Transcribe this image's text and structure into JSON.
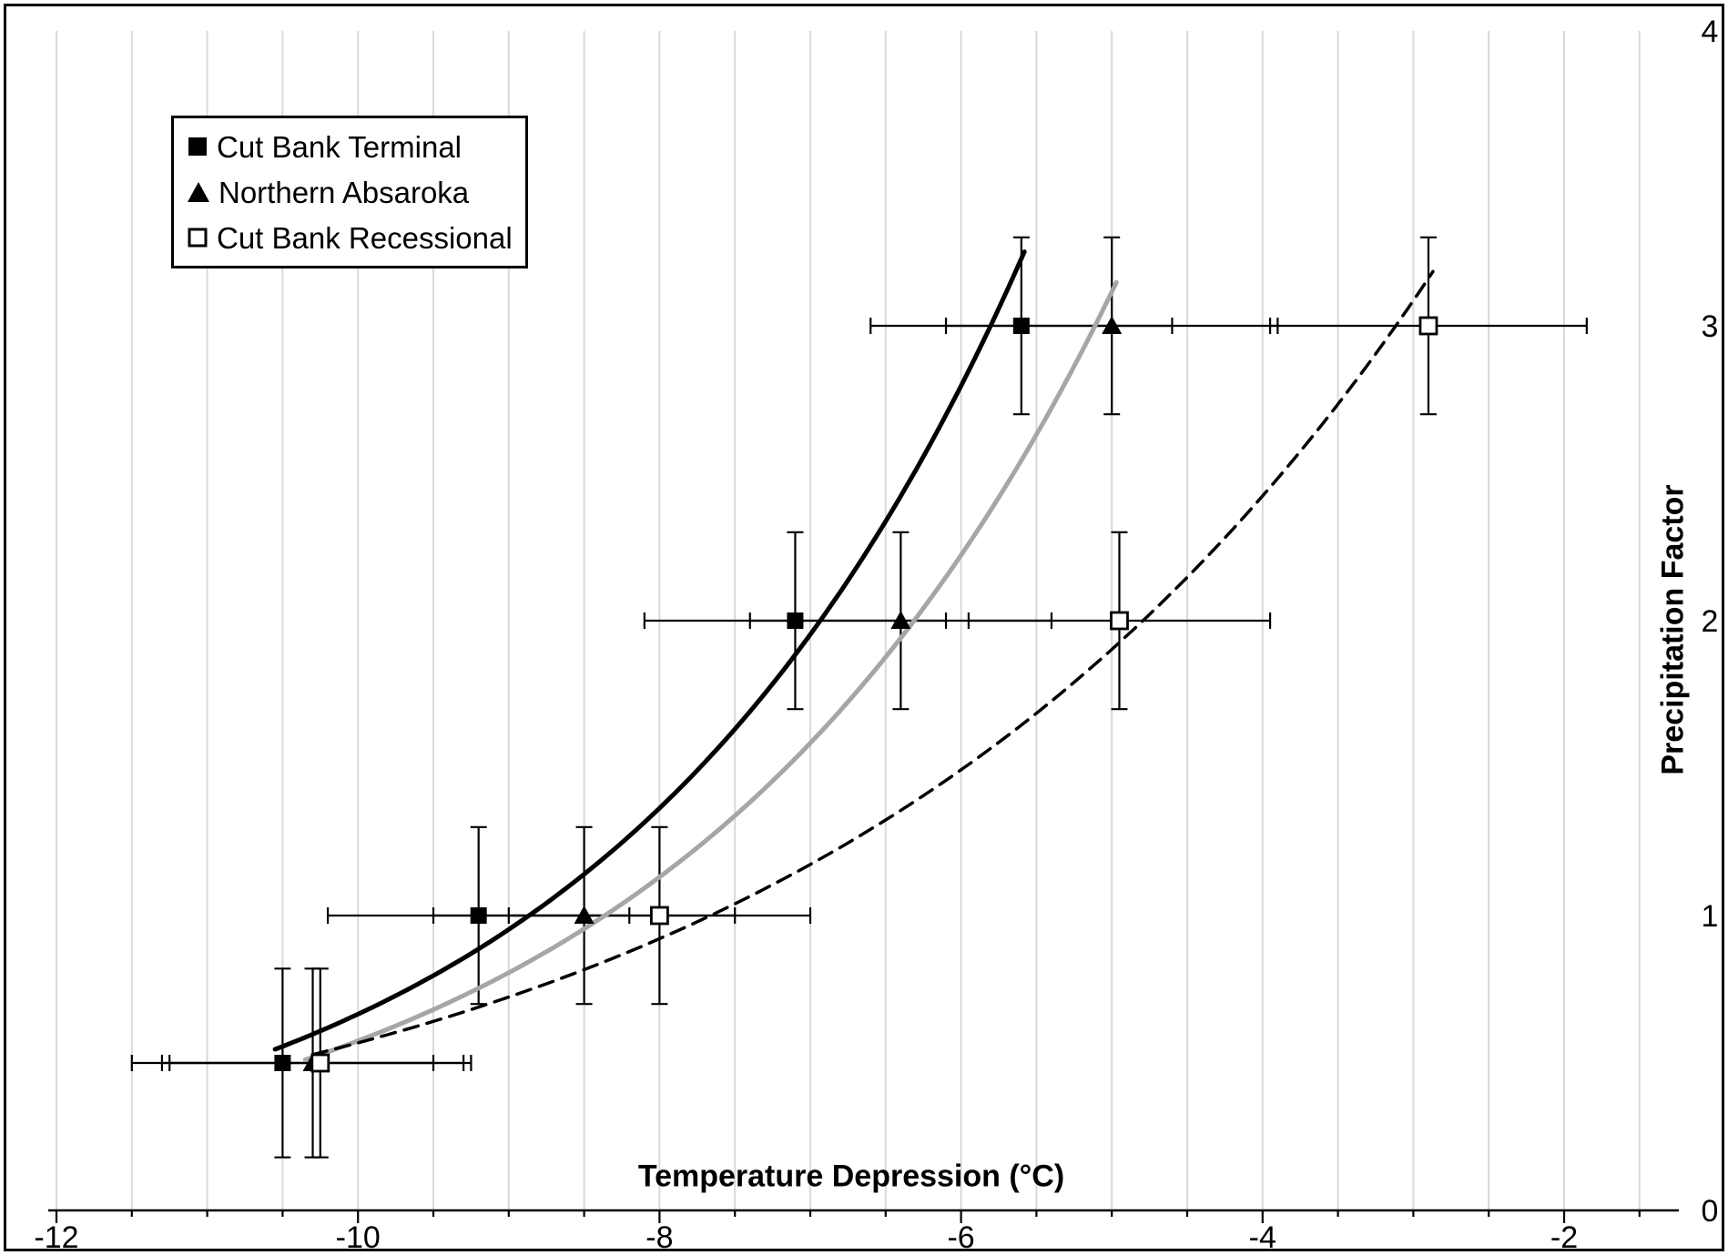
{
  "figure": {
    "background": "#ffffff",
    "border_color": "#000000"
  },
  "chart_data": {
    "type": "scatter",
    "title": "",
    "xlabel": "Temperature Depression (°C)",
    "ylabel": "Precipitation Factor",
    "xlim": [
      -12,
      -1.2
    ],
    "ylim": [
      0,
      4
    ],
    "x_ticks": [
      -12,
      -10,
      -8,
      -6,
      -4,
      -2
    ],
    "y_ticks": [
      0,
      1,
      2,
      3,
      4
    ],
    "y_axis_side": "right",
    "gridline_step": 0.5,
    "grid_on": true,
    "grid_color": "#d9d9d9",
    "legend": {
      "position": "top-left",
      "entries": [
        "Cut Bank Terminal",
        "Northern Absaroka",
        "Cut Bank Recessional"
      ]
    },
    "series": [
      {
        "name": "Cut Bank Terminal",
        "marker": "filled-square",
        "marker_color": "#000000",
        "line_style": "solid",
        "curve_color": "#000000",
        "curve_fit": "exponential",
        "curve_x_range": [
          -10.55,
          -5.58
        ],
        "points": [
          {
            "x": -10.5,
            "y": 0.5,
            "xerr": 1.0,
            "yerr": 0.32
          },
          {
            "x": -9.2,
            "y": 1.0,
            "xerr": 1.0,
            "yerr": 0.3
          },
          {
            "x": -7.1,
            "y": 2.0,
            "xerr": 1.0,
            "yerr": 0.3
          },
          {
            "x": -5.6,
            "y": 3.0,
            "xerr": 1.0,
            "yerr": 0.3
          }
        ]
      },
      {
        "name": "Northern Absaroka",
        "marker": "filled-triangle",
        "marker_color": "#000000",
        "line_style": "solid",
        "curve_color": "#a6a6a6",
        "curve_fit": "exponential",
        "curve_x_range": [
          -10.35,
          -4.97
        ],
        "points": [
          {
            "x": -10.3,
            "y": 0.5,
            "xerr": 1.0,
            "yerr": 0.32
          },
          {
            "x": -8.5,
            "y": 1.0,
            "xerr": 1.0,
            "yerr": 0.3
          },
          {
            "x": -6.4,
            "y": 2.0,
            "xerr": 1.0,
            "yerr": 0.3
          },
          {
            "x": -5.0,
            "y": 3.0,
            "xerr": 1.1,
            "yerr": 0.3
          }
        ]
      },
      {
        "name": "Cut Bank Recessional",
        "marker": "open-square",
        "marker_color": "#000000",
        "line_style": "dashed",
        "curve_color": "#000000",
        "curve_fit": "exponential",
        "curve_x_range": [
          -10.3,
          -2.87
        ],
        "points": [
          {
            "x": -10.25,
            "y": 0.5,
            "xerr": 1.0,
            "yerr": 0.32
          },
          {
            "x": -8.0,
            "y": 1.0,
            "xerr": 1.0,
            "yerr": 0.3
          },
          {
            "x": -4.95,
            "y": 2.0,
            "xerr": 1.0,
            "yerr": 0.3
          },
          {
            "x": -2.9,
            "y": 3.0,
            "xerr": 1.05,
            "yerr": 0.3
          }
        ]
      }
    ]
  }
}
